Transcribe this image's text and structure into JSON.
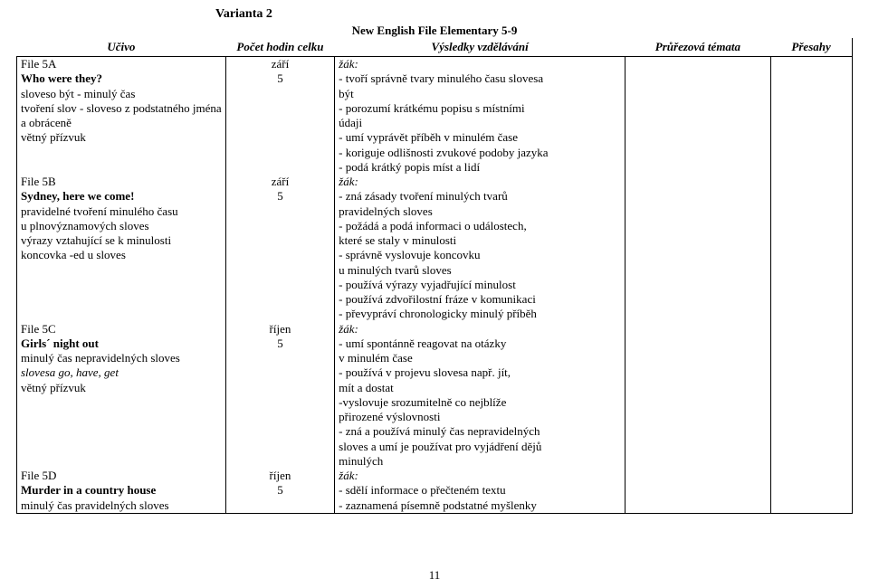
{
  "header": {
    "varianta": "Varianta 2",
    "subtitle": "New English File Elementary 5-9",
    "col_ucivo": "Učivo",
    "col_hodin": "Počet hodin celku",
    "col_vysledky": "Výsledky vzdělávání",
    "col_pruz": "Průřezová témata",
    "col_presahy": "Přesahy"
  },
  "col1": {
    "l0": "File 5A",
    "l1": "Who were they?",
    "l2": "sloveso být - minulý čas",
    "l3": "tvoření slov - sloveso z podstatného jména",
    "l4": "a obráceně",
    "l5": "větný přízvuk",
    "l6": "",
    "l7": "",
    "l8": "File 5B",
    "l9": "Sydney, here we come!",
    "l10": "pravidelné tvoření minulého času",
    "l11": "u plnovýznamových sloves",
    "l12": "výrazy vztahující se k minulosti",
    "l13": "koncovka -ed u sloves",
    "l14": "",
    "l15": "",
    "l16": "",
    "l17": "",
    "l18": "File 5C",
    "l19": "Girls´ night out",
    "l20": "minulý čas nepravidelných sloves",
    "l21": "slovesa go, have, get",
    "l22": "větný přízvuk",
    "l23": "",
    "l24": "",
    "l25": "",
    "l26": "",
    "l27": "",
    "l28": "File 5D",
    "l29": "Murder in a country house",
    "l30": "minulý čas pravidelných sloves"
  },
  "col2": {
    "l0": "září",
    "l1": "5",
    "l8": "září",
    "l9": "5",
    "l18": "říjen",
    "l19": "5",
    "l28": "říjen",
    "l29": "5"
  },
  "col3": {
    "l0": "žák:",
    "l1": "- tvoří správně tvary minulého času slovesa",
    "l2": "být",
    "l3": "- porozumí krátkému popisu s místními",
    "l4": "údaji",
    "l5": "- umí vyprávět příběh v minulém čase",
    "l6": "- koriguje odlišnosti zvukové podoby jazyka",
    "l7": "- podá krátký popis míst a lidí",
    "l8": "žák:",
    "l9": "- zná zásady tvoření minulých tvarů",
    "l10": "pravidelných sloves",
    "l11": "- požádá a podá informaci o událostech,",
    "l12": "které se staly v minulosti",
    "l13": "- správně vyslovuje koncovku",
    "l14": "u minulých tvarů sloves",
    "l15": "- používá výrazy vyjadřující minulost",
    "l16": "- používá zdvořilostní fráze v komunikaci",
    "l17": "- převypráví chronologicky minulý příběh",
    "l18": "žák:",
    "l19": "- umí spontánně reagovat na otázky",
    "l20": "v minulém čase",
    "l21": "- používá v projevu slovesa např. jít,",
    "l22": "mít a dostat",
    "l23": "-vyslovuje srozumitelně co nejblíže",
    "l24": "přirozené výslovnosti",
    "l25": "- zná a používá minulý čas nepravidelných",
    "l26": "sloves a umí je používat pro vyjádření dějů",
    "l27": "minulých",
    "l28": "žák:",
    "l29": "- sdělí informace o přečteném textu",
    "l30": "- zaznamená písemně podstatné myšlenky"
  },
  "pagenum": "11"
}
